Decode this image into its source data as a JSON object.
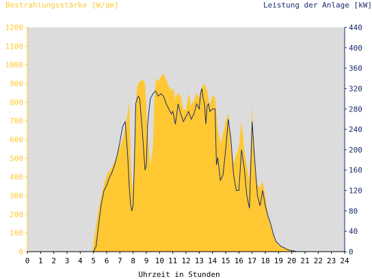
{
  "chart_data": {
    "type": "area",
    "left_axis_title": "Bestrahlungsstärke [W/qm]",
    "right_axis_title": "Leistung der Anlage [kW]",
    "xlabel": "Uhrzeit in Stunden",
    "xlim": [
      0,
      24
    ],
    "xticks": [
      0,
      1,
      2,
      3,
      4,
      5,
      6,
      7,
      8,
      9,
      10,
      11,
      12,
      13,
      14,
      15,
      16,
      17,
      18,
      19,
      20,
      21,
      22,
      23,
      24
    ],
    "ylim_left": [
      0,
      1200
    ],
    "yticks_left": [
      0,
      100,
      200,
      300,
      400,
      500,
      600,
      700,
      800,
      900,
      1000,
      1100,
      1200
    ],
    "ylim_right": [
      0,
      440
    ],
    "yticks_right": [
      0,
      40,
      80,
      120,
      160,
      200,
      240,
      280,
      320,
      360,
      400,
      440
    ],
    "grid": false,
    "series": [
      {
        "name": "Bestrahlungsstärke",
        "axis": "left",
        "color": "#ffc832",
        "x": [
          0,
          4.9,
          5.0,
          5.2,
          5.4,
          5.6,
          5.8,
          6.0,
          6.3,
          6.6,
          6.9,
          7.2,
          7.5,
          7.7,
          7.8,
          7.9,
          8.0,
          8.1,
          8.2,
          8.3,
          8.4,
          8.5,
          8.7,
          8.9,
          9.1,
          9.3,
          9.5,
          9.6,
          9.7,
          9.8,
          9.9,
          10.0,
          10.2,
          10.4,
          10.6,
          10.8,
          10.9,
          11.0,
          11.2,
          11.4,
          11.6,
          11.8,
          12.0,
          12.2,
          12.4,
          12.6,
          12.8,
          13.0,
          13.1,
          13.2,
          13.4,
          13.6,
          13.8,
          14.0,
          14.2,
          14.4,
          14.6,
          14.8,
          15.0,
          15.2,
          15.4,
          15.6,
          15.8,
          16.0,
          16.2,
          16.4,
          16.6,
          16.8,
          17.0,
          17.2,
          17.4,
          17.6,
          17.8,
          18.0,
          18.2,
          18.5,
          18.8,
          19.0,
          19.3,
          19.6,
          19.9,
          20.1,
          20.3,
          24
        ],
        "values": [
          0,
          0,
          40,
          140,
          230,
          300,
          360,
          410,
          440,
          480,
          540,
          600,
          700,
          800,
          520,
          380,
          330,
          560,
          790,
          880,
          900,
          910,
          920,
          900,
          630,
          460,
          560,
          800,
          900,
          930,
          910,
          920,
          950,
          940,
          900,
          870,
          860,
          880,
          820,
          850,
          830,
          760,
          760,
          850,
          780,
          810,
          850,
          820,
          860,
          880,
          900,
          860,
          780,
          840,
          820,
          660,
          580,
          630,
          700,
          740,
          560,
          470,
          520,
          560,
          700,
          550,
          460,
          380,
          780,
          470,
          360,
          340,
          380,
          300,
          200,
          110,
          60,
          35,
          25,
          18,
          10,
          4,
          0,
          0
        ]
      },
      {
        "name": "Leistung der Anlage",
        "axis": "right",
        "color": "#1a2a6c",
        "x": [
          0,
          5.0,
          5.2,
          5.4,
          5.6,
          5.8,
          6.0,
          6.2,
          6.4,
          6.6,
          6.8,
          7.0,
          7.2,
          7.4,
          7.6,
          7.7,
          7.8,
          7.9,
          8.0,
          8.1,
          8.2,
          8.3,
          8.4,
          8.5,
          8.7,
          8.9,
          9.0,
          9.1,
          9.3,
          9.5,
          9.7,
          9.9,
          10.1,
          10.3,
          10.5,
          10.7,
          10.9,
          11.0,
          11.2,
          11.4,
          11.6,
          11.8,
          12.0,
          12.2,
          12.4,
          12.6,
          12.8,
          13.0,
          13.1,
          13.2,
          13.3,
          13.4,
          13.5,
          13.6,
          13.7,
          13.8,
          14.0,
          14.2,
          14.3,
          14.4,
          14.6,
          14.8,
          15.0,
          15.2,
          15.4,
          15.6,
          15.8,
          16.0,
          16.2,
          16.4,
          16.6,
          16.8,
          17.0,
          17.2,
          17.4,
          17.6,
          17.8,
          18.0,
          18.2,
          18.4,
          18.6,
          18.8,
          19.0,
          19.2,
          19.4,
          19.6,
          19.8,
          20.0,
          20.2,
          20.4,
          24
        ],
        "values": [
          0,
          0,
          10,
          55,
          95,
          120,
          130,
          145,
          155,
          170,
          190,
          215,
          245,
          255,
          185,
          130,
          95,
          80,
          90,
          180,
          290,
          300,
          305,
          300,
          235,
          160,
          170,
          250,
          300,
          310,
          315,
          305,
          310,
          305,
          290,
          280,
          270,
          275,
          250,
          290,
          270,
          255,
          265,
          275,
          260,
          270,
          290,
          280,
          310,
          320,
          300,
          290,
          250,
          285,
          290,
          275,
          280,
          280,
          170,
          185,
          140,
          150,
          200,
          260,
          220,
          150,
          120,
          120,
          200,
          165,
          110,
          85,
          255,
          180,
          110,
          90,
          120,
          90,
          70,
          55,
          35,
          20,
          15,
          10,
          8,
          5,
          3,
          2,
          1,
          0,
          0
        ]
      }
    ]
  }
}
